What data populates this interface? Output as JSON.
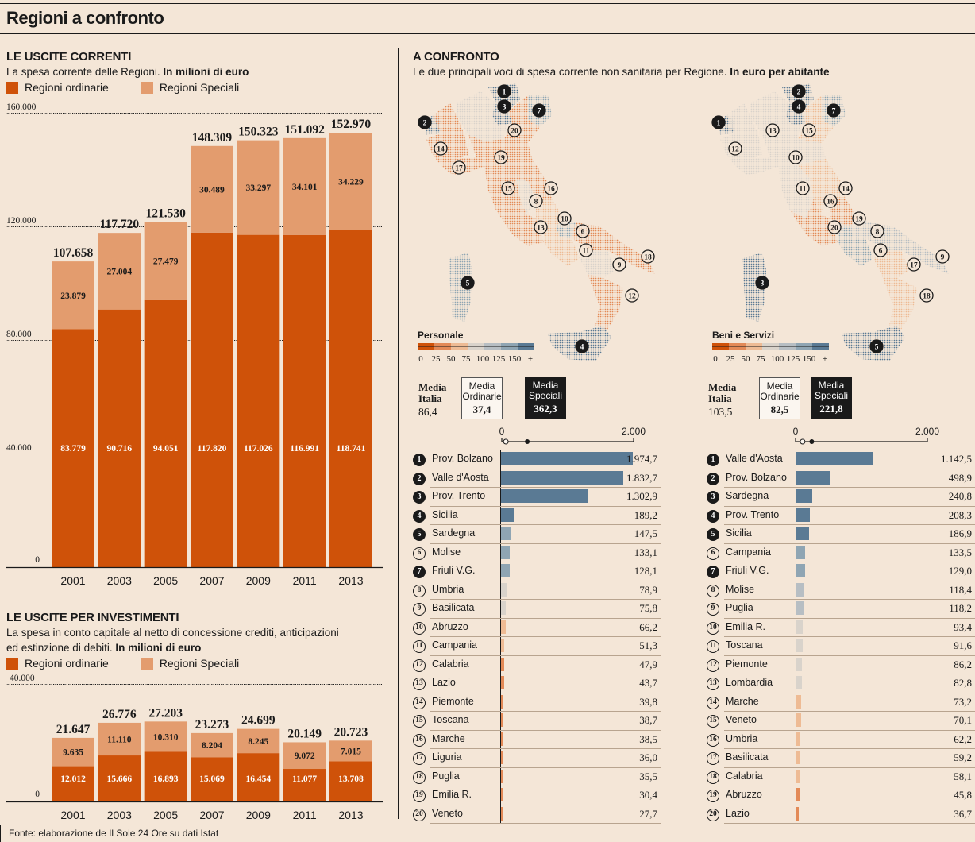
{
  "title": "Regioni a confronto",
  "colors": {
    "ordinarie": "#cf5209",
    "speciali": "#e39c6e",
    "scale": [
      "#cf5209",
      "#e38a57",
      "#eebb94",
      "#d9d3cb",
      "#b7bec3",
      "#8fa5b3",
      "#5a7a94"
    ]
  },
  "uscite_correnti": {
    "heading": "LE USCITE CORRENTI",
    "subtitle": "La spesa corrente delle Regioni.",
    "unit": "In milioni di euro",
    "legend": [
      "Regioni ordinarie",
      "Regioni Speciali"
    ]
  },
  "uscite_investimenti": {
    "heading": "LE USCITE PER INVESTIMENTI",
    "subtitle_1": "La spesa in conto capitale al netto di concessione crediti, anticipazioni",
    "subtitle_2": "ed estinzione di debiti.",
    "unit": "In milioni di euro",
    "legend": [
      "Regioni ordinarie",
      "Regioni Speciali"
    ]
  },
  "confronto": {
    "heading": "A CONFRONTO",
    "subtitle": "Le due principali voci di spesa corrente non sanitaria per Regione.",
    "unit": "In euro per abitante",
    "scale_ticks": [
      "0",
      "25",
      "50",
      "75",
      "100",
      "125",
      "150",
      "+"
    ],
    "axis_min": "0",
    "axis_max": "2.000",
    "media_italia_label_1": "Media",
    "media_italia_label_2": "Italia",
    "media_ord_label_1": "Media",
    "media_ord_label_2": "Ordinarie",
    "media_spe_label_1": "Media",
    "media_spe_label_2": "Speciali",
    "personale": {
      "title": "Personale",
      "media_italia": "86,4",
      "media_ordinarie": "37,4",
      "media_speciali": "362,3"
    },
    "beni": {
      "title": "Beni e Servizi",
      "media_italia": "103,5",
      "media_ordinarie": "82,5",
      "media_speciali": "221,8"
    }
  },
  "footer": "Fonte: elaborazione de Il Sole 24 Ore su dati Istat",
  "chart_data": [
    {
      "type": "bar",
      "stacked": true,
      "title": "LE USCITE CORRENTI",
      "ylabel": "In milioni di euro",
      "categories": [
        "2001",
        "2003",
        "2005",
        "2007",
        "2009",
        "2011",
        "2013"
      ],
      "series": [
        {
          "name": "Regioni ordinarie",
          "values": [
            83779,
            90716,
            94051,
            117820,
            117026,
            116991,
            118741
          ],
          "labels": [
            "83.779",
            "90.716",
            "94.051",
            "117.820",
            "117.026",
            "116.991",
            "118.741"
          ]
        },
        {
          "name": "Regioni Speciali",
          "values": [
            23879,
            27004,
            27479,
            30489,
            33297,
            34101,
            34229
          ],
          "labels": [
            "23.879",
            "27.004",
            "27.479",
            "30.489",
            "33.297",
            "34.101",
            "34.229"
          ]
        }
      ],
      "totals": [
        "107.658",
        "117.720",
        "121.530",
        "148.309",
        "150.323",
        "151.092",
        "152.970"
      ],
      "yticks": [
        0,
        40000,
        80000,
        120000,
        160000
      ],
      "ytick_labels": [
        "0",
        "40.000",
        "80.000",
        "120.000",
        "160.000"
      ],
      "ylim": [
        0,
        160000
      ],
      "grid": true
    },
    {
      "type": "bar",
      "stacked": true,
      "title": "LE USCITE PER INVESTIMENTI",
      "ylabel": "In milioni di euro",
      "categories": [
        "2001",
        "2003",
        "2005",
        "2007",
        "2009",
        "2011",
        "2013"
      ],
      "series": [
        {
          "name": "Regioni ordinarie",
          "values": [
            12012,
            15666,
            16893,
            15069,
            16454,
            11077,
            13708
          ],
          "labels": [
            "12.012",
            "15.666",
            "16.893",
            "15.069",
            "16.454",
            "11.077",
            "13.708"
          ]
        },
        {
          "name": "Regioni Speciali",
          "values": [
            9635,
            11110,
            10310,
            8204,
            8245,
            9072,
            7015
          ],
          "labels": [
            "9.635",
            "11.110",
            "10.310",
            "8.204",
            "8.245",
            "9.072",
            "7.015"
          ]
        }
      ],
      "totals": [
        "21.647",
        "26.776",
        "27.203",
        "23.273",
        "24.699",
        "20.149",
        "20.723"
      ],
      "yticks": [
        0,
        40000
      ],
      "ytick_labels": [
        "0",
        "40.000"
      ],
      "ylim": [
        0,
        40000
      ],
      "grid": true
    },
    {
      "type": "bar",
      "orientation": "horizontal",
      "title": "Personale",
      "unit": "In euro per abitante",
      "xlim": [
        0,
        2000
      ],
      "items": [
        {
          "rank": 1,
          "name": "Prov. Bolzano",
          "value": 1974.7,
          "label": "1.974,7",
          "special": true
        },
        {
          "rank": 2,
          "name": "Valle d'Aosta",
          "value": 1832.7,
          "label": "1.832,7",
          "special": true
        },
        {
          "rank": 3,
          "name": "Prov. Trento",
          "value": 1302.9,
          "label": "1.302,9",
          "special": true
        },
        {
          "rank": 4,
          "name": "Sicilia",
          "value": 189.2,
          "label": "189,2",
          "special": true
        },
        {
          "rank": 5,
          "name": "Sardegna",
          "value": 147.5,
          "label": "147,5",
          "special": true
        },
        {
          "rank": 6,
          "name": "Molise",
          "value": 133.1,
          "label": "133,1",
          "special": false
        },
        {
          "rank": 7,
          "name": "Friuli V.G.",
          "value": 128.1,
          "label": "128,1",
          "special": true
        },
        {
          "rank": 8,
          "name": "Umbria",
          "value": 78.9,
          "label": "78,9",
          "special": false
        },
        {
          "rank": 9,
          "name": "Basilicata",
          "value": 75.8,
          "label": "75,8",
          "special": false
        },
        {
          "rank": 10,
          "name": "Abruzzo",
          "value": 66.2,
          "label": "66,2",
          "special": false
        },
        {
          "rank": 11,
          "name": "Campania",
          "value": 51.3,
          "label": "51,3",
          "special": false
        },
        {
          "rank": 12,
          "name": "Calabria",
          "value": 47.9,
          "label": "47,9",
          "special": false
        },
        {
          "rank": 13,
          "name": "Lazio",
          "value": 43.7,
          "label": "43,7",
          "special": false
        },
        {
          "rank": 14,
          "name": "Piemonte",
          "value": 39.8,
          "label": "39,8",
          "special": false
        },
        {
          "rank": 15,
          "name": "Toscana",
          "value": 38.7,
          "label": "38,7",
          "special": false
        },
        {
          "rank": 16,
          "name": "Marche",
          "value": 38.5,
          "label": "38,5",
          "special": false
        },
        {
          "rank": 17,
          "name": "Liguria",
          "value": 36.0,
          "label": "36,0",
          "special": false
        },
        {
          "rank": 18,
          "name": "Puglia",
          "value": 35.5,
          "label": "35,5",
          "special": false
        },
        {
          "rank": 19,
          "name": "Emilia R.",
          "value": 30.4,
          "label": "30,4",
          "special": false
        },
        {
          "rank": 20,
          "name": "Veneto",
          "value": 27.7,
          "label": "27,7",
          "special": false
        }
      ]
    },
    {
      "type": "bar",
      "orientation": "horizontal",
      "title": "Beni e Servizi",
      "unit": "In euro per abitante",
      "xlim": [
        0,
        2000
      ],
      "items": [
        {
          "rank": 1,
          "name": "Valle d'Aosta",
          "value": 1142.5,
          "label": "1.142,5",
          "special": true
        },
        {
          "rank": 2,
          "name": "Prov. Bolzano",
          "value": 498.9,
          "label": "498,9",
          "special": true
        },
        {
          "rank": 3,
          "name": "Sardegna",
          "value": 240.8,
          "label": "240,8",
          "special": true
        },
        {
          "rank": 4,
          "name": "Prov. Trento",
          "value": 208.3,
          "label": "208,3",
          "special": true
        },
        {
          "rank": 5,
          "name": "Sicilia",
          "value": 186.9,
          "label": "186,9",
          "special": true
        },
        {
          "rank": 6,
          "name": "Campania",
          "value": 133.5,
          "label": "133,5",
          "special": false
        },
        {
          "rank": 7,
          "name": "Friuli V.G.",
          "value": 129.0,
          "label": "129,0",
          "special": true
        },
        {
          "rank": 8,
          "name": "Molise",
          "value": 118.4,
          "label": "118,4",
          "special": false
        },
        {
          "rank": 9,
          "name": "Puglia",
          "value": 118.2,
          "label": "118,2",
          "special": false
        },
        {
          "rank": 10,
          "name": "Emilia R.",
          "value": 93.4,
          "label": "93,4",
          "special": false
        },
        {
          "rank": 11,
          "name": "Toscana",
          "value": 91.6,
          "label": "91,6",
          "special": false
        },
        {
          "rank": 12,
          "name": "Piemonte",
          "value": 86.2,
          "label": "86,2",
          "special": false
        },
        {
          "rank": 13,
          "name": "Lombardia",
          "value": 82.8,
          "label": "82,8",
          "special": false
        },
        {
          "rank": 14,
          "name": "Marche",
          "value": 73.2,
          "label": "73,2",
          "special": false
        },
        {
          "rank": 15,
          "name": "Veneto",
          "value": 70.1,
          "label": "70,1",
          "special": false
        },
        {
          "rank": 16,
          "name": "Umbria",
          "value": 62.2,
          "label": "62,2",
          "special": false
        },
        {
          "rank": 17,
          "name": "Basilicata",
          "value": 59.2,
          "label": "59,2",
          "special": false
        },
        {
          "rank": 18,
          "name": "Calabria",
          "value": 58.1,
          "label": "58,1",
          "special": false
        },
        {
          "rank": 19,
          "name": "Abruzzo",
          "value": 45.8,
          "label": "45,8",
          "special": false
        },
        {
          "rank": 20,
          "name": "Lazio",
          "value": 36.7,
          "label": "36,7",
          "special": false
        }
      ]
    }
  ]
}
